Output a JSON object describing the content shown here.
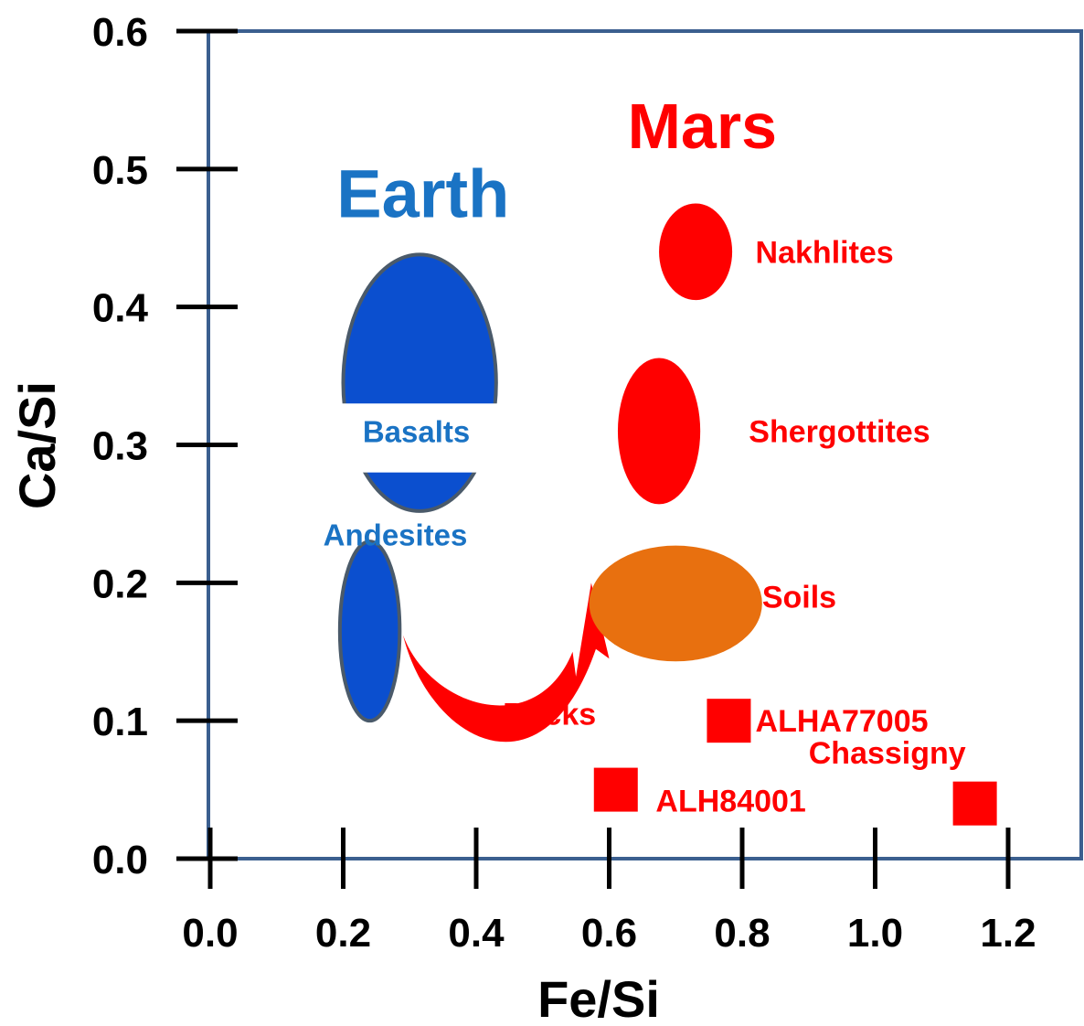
{
  "chart_data": {
    "type": "scatter",
    "xlabel": "Fe/Si",
    "ylabel": "Ca/Si",
    "xlim": [
      0.0,
      1.3
    ],
    "ylim": [
      0.0,
      0.6
    ],
    "x_ticks": [
      "0.0",
      "0.2",
      "0.4",
      "0.6",
      "0.8",
      "1.0",
      "1.2"
    ],
    "y_ticks": [
      "0.0",
      "0.1",
      "0.2",
      "0.3",
      "0.4",
      "0.5",
      "0.6"
    ],
    "grid": false,
    "group_titles": [
      {
        "text": "Earth",
        "color": "#1a73c4",
        "x": 0.32,
        "y": 0.465
      },
      {
        "text": "Mars",
        "color": "#ff0000",
        "x": 0.74,
        "y": 0.515
      }
    ],
    "regions": [
      {
        "name": "Basalts",
        "shape": "ellipse",
        "center": [
          0.315,
          0.345
        ],
        "rx": 0.115,
        "ry": 0.093,
        "color": "#0b4fcf",
        "stroke": "#4a5a6a",
        "label_color": "#1a73c4",
        "label_pos": [
          0.31,
          0.31
        ]
      },
      {
        "name": "Andesites",
        "shape": "ellipse",
        "center": [
          0.24,
          0.165
        ],
        "rx": 0.045,
        "ry": 0.065,
        "color": "#0b4fcf",
        "stroke": "#4a5a6a",
        "label_color": "#1a73c4",
        "label_pos": [
          0.17,
          0.235
        ]
      },
      {
        "name": "Nakhlites",
        "shape": "ellipse",
        "center": [
          0.73,
          0.44
        ],
        "rx": 0.055,
        "ry": 0.035,
        "color": "#ff0000",
        "label_color": "#ff0000",
        "label_pos": [
          0.82,
          0.44
        ]
      },
      {
        "name": "Shergottites",
        "shape": "ellipse",
        "center": [
          0.675,
          0.31
        ],
        "rx": 0.062,
        "ry": 0.053,
        "color": "#ff0000",
        "label_color": "#ff0000",
        "label_pos": [
          0.81,
          0.31
        ]
      },
      {
        "name": "Soils",
        "shape": "ellipse",
        "center": [
          0.7,
          0.185
        ],
        "rx": 0.13,
        "ry": 0.042,
        "color": "#e8700f",
        "label_color": "#ff0000",
        "label_pos": [
          0.83,
          0.19
        ]
      },
      {
        "name": "Rocks",
        "shape": "arrow",
        "color": "#ff0000",
        "label_color": "#ff0000",
        "label_pos": [
          0.44,
          0.105
        ]
      }
    ],
    "points": [
      {
        "name": "ALHA77005",
        "x": 0.78,
        "y": 0.1,
        "color": "#ff0000",
        "label_pos": [
          0.82,
          0.1
        ]
      },
      {
        "name": "ALH84001",
        "x": 0.61,
        "y": 0.05,
        "color": "#ff0000",
        "label_pos": [
          0.67,
          0.042
        ]
      },
      {
        "name": "Chassigny",
        "x": 1.15,
        "y": 0.04,
        "color": "#ff0000",
        "label_pos": [
          0.9,
          0.077
        ]
      }
    ]
  }
}
